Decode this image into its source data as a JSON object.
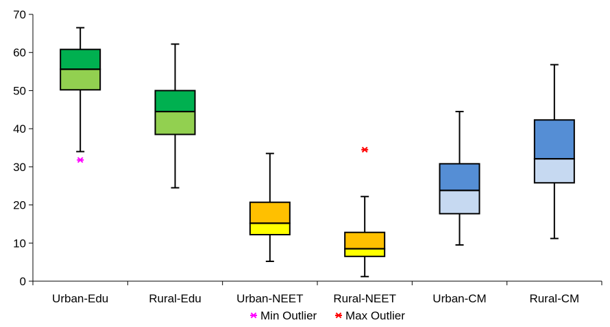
{
  "chart_data": {
    "type": "boxplot",
    "ylim": [
      0,
      70
    ],
    "yticks": [
      0,
      10,
      20,
      30,
      40,
      50,
      60,
      70
    ],
    "grid": false,
    "legend_position": "bottom-center",
    "categories": [
      "Urban-Edu",
      "Rural-Edu",
      "Urban-NEET",
      "Rural-NEET",
      "Urban-CM",
      "Rural-CM"
    ],
    "boxes": [
      {
        "category": "Urban-Edu",
        "whisker_low": 34.0,
        "q1": 50.2,
        "median": 55.6,
        "q3": 60.8,
        "whisker_high": 66.5,
        "min_outlier": 31.8,
        "max_outlier": null,
        "lower_color": "#92d050",
        "upper_color": "#00b050"
      },
      {
        "category": "Rural-Edu",
        "whisker_low": 24.5,
        "q1": 38.5,
        "median": 44.5,
        "q3": 50.0,
        "whisker_high": 62.2,
        "min_outlier": null,
        "max_outlier": null,
        "lower_color": "#92d050",
        "upper_color": "#00b050"
      },
      {
        "category": "Urban-NEET",
        "whisker_low": 5.2,
        "q1": 12.2,
        "median": 15.2,
        "q3": 20.7,
        "whisker_high": 33.5,
        "min_outlier": null,
        "max_outlier": null,
        "lower_color": "#ffff00",
        "upper_color": "#ffc000"
      },
      {
        "category": "Rural-NEET",
        "whisker_low": 1.2,
        "q1": 6.5,
        "median": 8.5,
        "q3": 12.8,
        "whisker_high": 22.2,
        "min_outlier": null,
        "max_outlier": 34.5,
        "lower_color": "#ffff00",
        "upper_color": "#ffc000"
      },
      {
        "category": "Urban-CM",
        "whisker_low": 9.5,
        "q1": 17.7,
        "median": 23.8,
        "q3": 30.8,
        "whisker_high": 44.5,
        "min_outlier": null,
        "max_outlier": null,
        "lower_color": "#c6d9f1",
        "upper_color": "#558ed5"
      },
      {
        "category": "Rural-CM",
        "whisker_low": 11.2,
        "q1": 25.8,
        "median": 32.1,
        "q3": 42.3,
        "whisker_high": 56.8,
        "min_outlier": null,
        "max_outlier": null,
        "lower_color": "#c6d9f1",
        "upper_color": "#558ed5"
      }
    ],
    "legend": [
      {
        "label": "Min Outlier",
        "marker": "asterisk",
        "color": "#ff00ff"
      },
      {
        "label": "Max Outlier",
        "marker": "asterisk",
        "color": "#ff0000"
      }
    ]
  }
}
